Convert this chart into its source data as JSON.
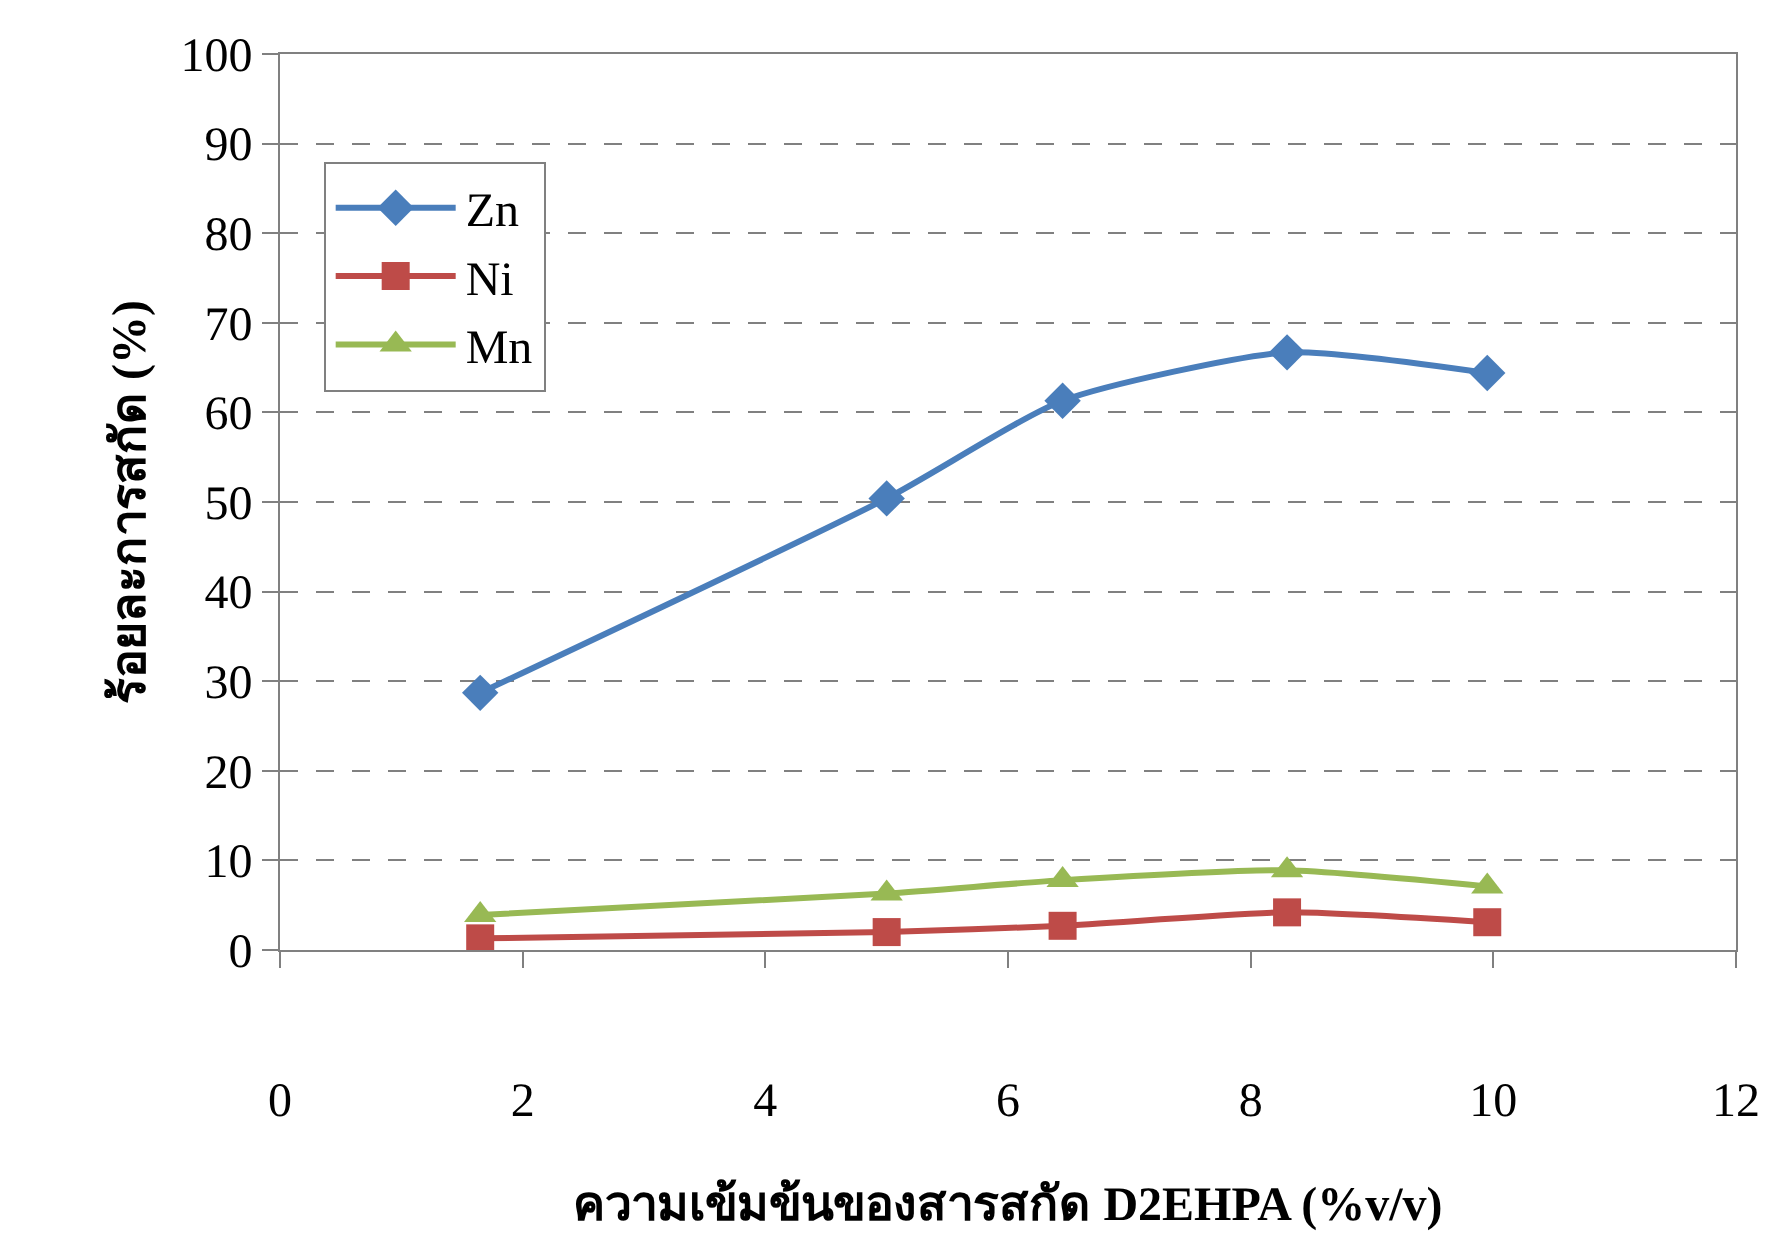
{
  "chart_data": {
    "type": "line",
    "xlabel": "ความเข้มข้นของสารสกัด D2EHPA (%v/v)",
    "ylabel": "ร้อยละการสกัด (%)",
    "x": [
      1.65,
      5.0,
      6.45,
      8.3,
      9.95
    ],
    "series": [
      {
        "name": "Zn",
        "color": "#4a7ebb",
        "marker": "diamond",
        "values": [
          28.7,
          50.4,
          61.3,
          66.7,
          64.4
        ]
      },
      {
        "name": "Ni",
        "color": "#be4b48",
        "marker": "square",
        "values": [
          1.3,
          2.0,
          2.7,
          4.2,
          3.1
        ]
      },
      {
        "name": "Mn",
        "color": "#98b954",
        "marker": "triangle",
        "values": [
          3.9,
          6.3,
          7.8,
          8.9,
          7.1
        ]
      }
    ],
    "xlim": [
      0,
      12
    ],
    "xticks": [
      0,
      2,
      4,
      6,
      8,
      10,
      12
    ],
    "ylim": [
      0,
      100
    ],
    "yticks": [
      0,
      10,
      20,
      30,
      40,
      50,
      60,
      70,
      80,
      90,
      100
    ],
    "grid": "y",
    "legend": "top left",
    "line_style": "solid"
  }
}
